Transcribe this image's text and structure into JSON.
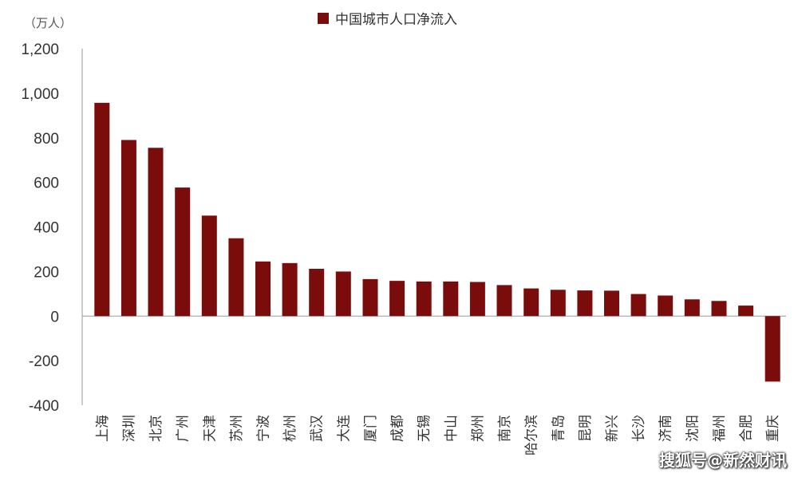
{
  "watermark": "搜狐号@新然财讯",
  "chart_data": {
    "type": "bar",
    "unit_label": "（万人）",
    "legend": [
      {
        "name": "中国城市人口净流入",
        "color": "#7b0c0c"
      }
    ],
    "series": [
      {
        "name": "中国城市人口净流入",
        "color": "#7b0c0c"
      }
    ],
    "categories": [
      "上海",
      "深圳",
      "北京",
      "广州",
      "天津",
      "苏州",
      "宁波",
      "杭州",
      "武汉",
      "大连",
      "厦门",
      "成都",
      "无锡",
      "中山",
      "郑州",
      "南京",
      "哈尔滨",
      "青岛",
      "昆明",
      "新兴",
      "长沙",
      "济南",
      "沈阳",
      "福州",
      "合肥",
      "重庆"
    ],
    "values": [
      957,
      790,
      755,
      577,
      451,
      349,
      245,
      238,
      212,
      200,
      166,
      158,
      155,
      155,
      153,
      139,
      124,
      118,
      115,
      114,
      99,
      92,
      75,
      68,
      47,
      -294
    ],
    "ylim": [
      -400,
      1200
    ],
    "yticks": [
      1200,
      1000,
      800,
      600,
      400,
      200,
      0,
      -200,
      -400
    ],
    "ytick_labels": [
      "1,200",
      "1,000",
      "800",
      "600",
      "400",
      "200",
      "0",
      "-200",
      "-400"
    ],
    "title": "",
    "xlabel": "",
    "ylabel": "",
    "grid": false,
    "legend_position": "top-center"
  }
}
